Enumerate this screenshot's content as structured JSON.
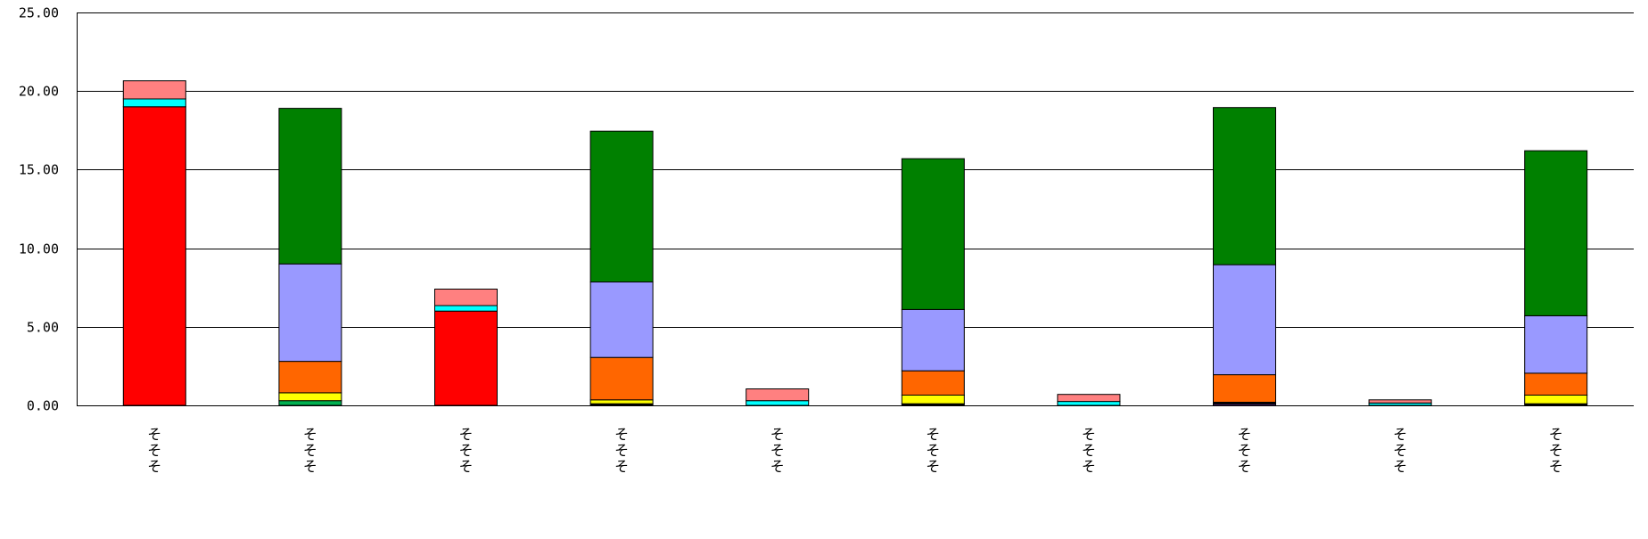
{
  "chart_data": {
    "type": "bar",
    "stacked": true,
    "title": "",
    "xlabel": "",
    "ylabel": "",
    "ylim": [
      0,
      25
    ],
    "y_ticks": [
      0,
      5,
      10,
      15,
      20,
      25
    ],
    "y_tick_labels": [
      "0.00",
      "5.00",
      "10.00",
      "15.00",
      "20.00",
      "25.00"
    ],
    "grid": true,
    "legend": "none",
    "categories": [
      "そそそ",
      "そそそ",
      "そそそ",
      "そそそ",
      "そそそ",
      "そそそ",
      "そそそ",
      "そそそ",
      "そそそ",
      "そそそ"
    ],
    "series": [
      {
        "color": "#7030A0",
        "values": [
          0,
          0,
          0,
          0,
          0,
          0,
          0,
          0.1,
          0,
          0
        ]
      },
      {
        "color": "#000000",
        "values": [
          0,
          0,
          0,
          0.1,
          0,
          0.1,
          0,
          0.1,
          0,
          0.1
        ]
      },
      {
        "color": "#00B050",
        "values": [
          0,
          0.3,
          0,
          0,
          0,
          0,
          0,
          0,
          0,
          0
        ]
      },
      {
        "color": "#FFFF00",
        "values": [
          0,
          0.5,
          0,
          0.25,
          0,
          0.55,
          0,
          0,
          0,
          0.55
        ]
      },
      {
        "color": "#FF6600",
        "values": [
          0,
          2.0,
          0,
          2.7,
          0,
          1.55,
          0,
          1.75,
          0,
          1.4
        ]
      },
      {
        "color": "#9999FF",
        "values": [
          0,
          6.2,
          0,
          4.8,
          0,
          3.9,
          0,
          7.0,
          0,
          3.65
        ]
      },
      {
        "color": "#008000",
        "values": [
          0,
          9.9,
          0,
          9.6,
          0,
          9.6,
          0,
          10.0,
          0,
          10.5
        ]
      },
      {
        "color": "#FF0000",
        "values": [
          19.0,
          0,
          6.0,
          0,
          0,
          0,
          0,
          0,
          0,
          0
        ]
      },
      {
        "color": "#00FFFF",
        "values": [
          0.5,
          0,
          0.35,
          0,
          0.3,
          0,
          0.25,
          0,
          0.15,
          0
        ]
      },
      {
        "color": "#FF8080",
        "values": [
          1.15,
          0,
          1.05,
          0,
          0.75,
          0,
          0.45,
          0,
          0.2,
          0
        ]
      }
    ]
  }
}
